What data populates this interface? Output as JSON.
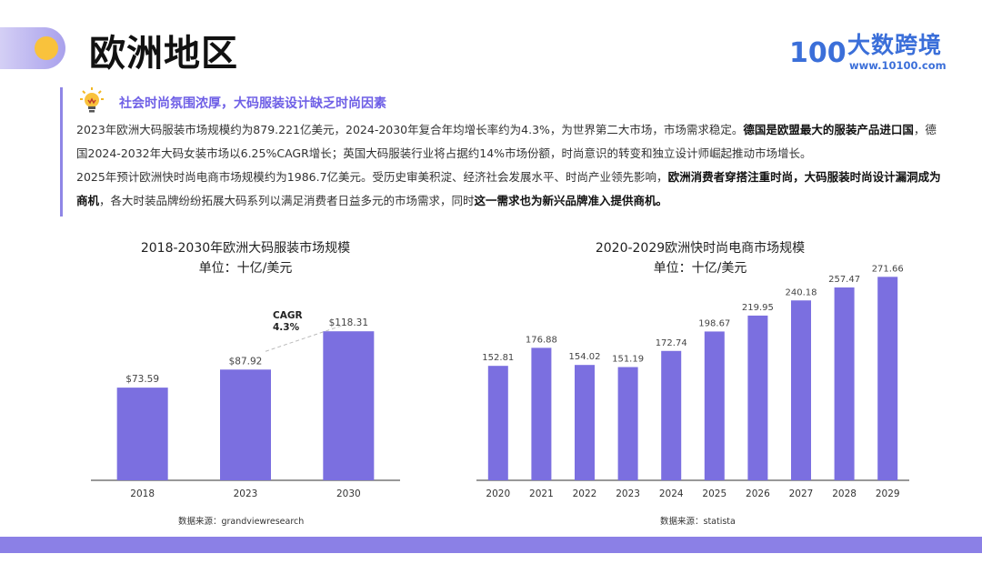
{
  "header": {
    "title": "欧洲地区",
    "logo_text": "大数跨境",
    "logo_url": "www.10100.com",
    "logo_mark": "100"
  },
  "section": {
    "subtitle": "社会时尚氛围浓厚，大码服装设计缺乏时尚因素",
    "paragraph1": [
      {
        "text": "2023年欧洲大码服装市场规模约为879.221亿美元，2024-2030年复合年均增长率约为4.3%，为世界第二大市场，市场需求稳定。",
        "bold": false
      },
      {
        "text": "德国是欧盟最大的服装产品进口国",
        "bold": true
      },
      {
        "text": "，德国2024-2032年大码女装市场以6.25%CAGR增长；英国大码服装行业将占据约14%市场份额，时尚意识的转变和独立设计师崛起推动市场增长。",
        "bold": false
      }
    ],
    "paragraph2": [
      {
        "text": "2025年预计欧洲快时尚电商市场规模约为1986.7亿美元。受历史审美积淀、经济社会发展水平、时尚产业领先影响，",
        "bold": false
      },
      {
        "text": "欧洲消费者穿搭注重时尚，大码服装时尚设计漏洞成为商机",
        "bold": true
      },
      {
        "text": "，各大时装品牌纷纷拓展大码系列以满足消费者日益多元的市场需求，同时",
        "bold": false
      },
      {
        "text": "这一需求也为新兴品牌准入提供商机。",
        "bold": true
      }
    ]
  },
  "colors": {
    "bar": "#7b6fe0",
    "accent": "#6e5fe6",
    "logo": "#3b6fd9"
  },
  "chart_data": [
    {
      "type": "bar",
      "title": "2018-2030年欧洲大码服装市场规模",
      "subtitle": "单位：十亿/美元",
      "categories": [
        "2018",
        "2023",
        "2030"
      ],
      "values": [
        73.59,
        87.92,
        118.31
      ],
      "labels": [
        "$73.59",
        "$87.92",
        "$118.31"
      ],
      "annotation": {
        "line1": "CAGR",
        "line2": "4.3%"
      },
      "ylim": [
        0,
        130
      ],
      "source": "数据来源：grandviewresearch"
    },
    {
      "type": "bar",
      "title": "2020-2029欧洲快时尚电商市场规模",
      "subtitle": "单位：十亿/美元",
      "categories": [
        "2020",
        "2021",
        "2022",
        "2023",
        "2024",
        "2025",
        "2026",
        "2027",
        "2028",
        "2029"
      ],
      "values": [
        152.81,
        176.88,
        154.02,
        151.19,
        172.74,
        198.67,
        219.95,
        240.18,
        257.47,
        271.66
      ],
      "labels": [
        "152.81",
        "176.88",
        "154.02",
        "151.19",
        "172.74",
        "198.67",
        "219.95",
        "240.18",
        "257.47",
        "271.66"
      ],
      "ylim": [
        0,
        300
      ],
      "source": "数据来源：statista"
    }
  ]
}
